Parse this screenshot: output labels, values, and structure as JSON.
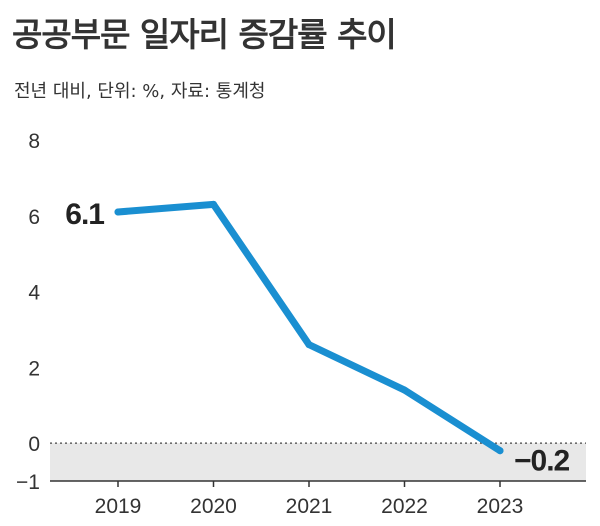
{
  "header": {
    "title": "공공부문 일자리 증감률 추이",
    "subtitle": "전년 대비, 단위: %, 자료: 통계청"
  },
  "colors": {
    "line": "#1a8fd1",
    "negative_band": "#e8e8e8",
    "zero_line": "#444444",
    "axis": "#333333"
  },
  "chart_data": {
    "type": "line",
    "title": "공공부문 일자리 증감률 추이",
    "subtitle": "전년 대비, 단위: %, 자료: 통계청",
    "xlabel": "",
    "ylabel": "",
    "categories": [
      "2019",
      "2020",
      "2021",
      "2022",
      "2023"
    ],
    "series": [
      {
        "values": [
          6.1,
          6.3,
          2.6,
          1.4,
          -0.2
        ]
      }
    ],
    "ylim": [
      -1,
      8
    ],
    "yticks": [
      -1,
      0,
      2,
      4,
      6,
      8
    ],
    "ytick_labels": [
      "−1",
      "0",
      "2",
      "4",
      "6",
      "8"
    ],
    "data_labels": [
      {
        "index": 0,
        "text": "6.1"
      },
      {
        "index": 4,
        "text": "−0.2"
      }
    ],
    "grid": false,
    "legend": "none"
  }
}
